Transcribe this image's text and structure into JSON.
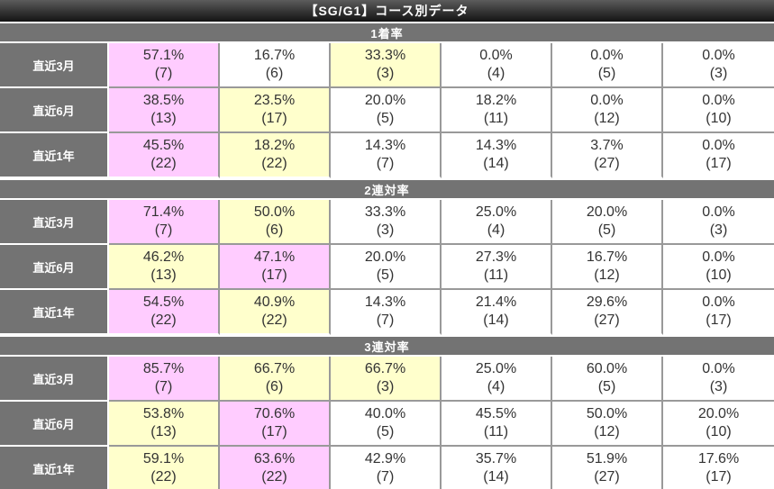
{
  "page_title": "【SG/G1】コース別データ",
  "colors": {
    "highlight_pink": "#FFCCFF",
    "highlight_yellow": "#FFFFCC",
    "header_gray": "#737373",
    "border_gray": "#999999",
    "title_bar_dark": "#141414"
  },
  "sections": [
    {
      "header": "1着率",
      "rows": [
        {
          "label": "直近3月",
          "cells": [
            {
              "pct": "57.1%",
              "count": "(7)",
              "hl": "pink"
            },
            {
              "pct": "16.7%",
              "count": "(6)",
              "hl": "plain"
            },
            {
              "pct": "33.3%",
              "count": "(3)",
              "hl": "yellow"
            },
            {
              "pct": "0.0%",
              "count": "(4)",
              "hl": "plain"
            },
            {
              "pct": "0.0%",
              "count": "(5)",
              "hl": "plain"
            },
            {
              "pct": "0.0%",
              "count": "(3)",
              "hl": "plain"
            }
          ]
        },
        {
          "label": "直近6月",
          "cells": [
            {
              "pct": "38.5%",
              "count": "(13)",
              "hl": "pink"
            },
            {
              "pct": "23.5%",
              "count": "(17)",
              "hl": "yellow"
            },
            {
              "pct": "20.0%",
              "count": "(5)",
              "hl": "plain"
            },
            {
              "pct": "18.2%",
              "count": "(11)",
              "hl": "plain"
            },
            {
              "pct": "0.0%",
              "count": "(12)",
              "hl": "plain"
            },
            {
              "pct": "0.0%",
              "count": "(10)",
              "hl": "plain"
            }
          ]
        },
        {
          "label": "直近1年",
          "cells": [
            {
              "pct": "45.5%",
              "count": "(22)",
              "hl": "pink"
            },
            {
              "pct": "18.2%",
              "count": "(22)",
              "hl": "yellow"
            },
            {
              "pct": "14.3%",
              "count": "(7)",
              "hl": "plain"
            },
            {
              "pct": "14.3%",
              "count": "(14)",
              "hl": "plain"
            },
            {
              "pct": "3.7%",
              "count": "(27)",
              "hl": "plain"
            },
            {
              "pct": "0.0%",
              "count": "(17)",
              "hl": "plain"
            }
          ]
        }
      ]
    },
    {
      "header": "2連対率",
      "rows": [
        {
          "label": "直近3月",
          "cells": [
            {
              "pct": "71.4%",
              "count": "(7)",
              "hl": "pink"
            },
            {
              "pct": "50.0%",
              "count": "(6)",
              "hl": "yellow"
            },
            {
              "pct": "33.3%",
              "count": "(3)",
              "hl": "plain"
            },
            {
              "pct": "25.0%",
              "count": "(4)",
              "hl": "plain"
            },
            {
              "pct": "20.0%",
              "count": "(5)",
              "hl": "plain"
            },
            {
              "pct": "0.0%",
              "count": "(3)",
              "hl": "plain"
            }
          ]
        },
        {
          "label": "直近6月",
          "cells": [
            {
              "pct": "46.2%",
              "count": "(13)",
              "hl": "yellow"
            },
            {
              "pct": "47.1%",
              "count": "(17)",
              "hl": "pink"
            },
            {
              "pct": "20.0%",
              "count": "(5)",
              "hl": "plain"
            },
            {
              "pct": "27.3%",
              "count": "(11)",
              "hl": "plain"
            },
            {
              "pct": "16.7%",
              "count": "(12)",
              "hl": "plain"
            },
            {
              "pct": "0.0%",
              "count": "(10)",
              "hl": "plain"
            }
          ]
        },
        {
          "label": "直近1年",
          "cells": [
            {
              "pct": "54.5%",
              "count": "(22)",
              "hl": "pink"
            },
            {
              "pct": "40.9%",
              "count": "(22)",
              "hl": "yellow"
            },
            {
              "pct": "14.3%",
              "count": "(7)",
              "hl": "plain"
            },
            {
              "pct": "21.4%",
              "count": "(14)",
              "hl": "plain"
            },
            {
              "pct": "29.6%",
              "count": "(27)",
              "hl": "plain"
            },
            {
              "pct": "0.0%",
              "count": "(17)",
              "hl": "plain"
            }
          ]
        }
      ]
    },
    {
      "header": "3連対率",
      "rows": [
        {
          "label": "直近3月",
          "cells": [
            {
              "pct": "85.7%",
              "count": "(7)",
              "hl": "pink"
            },
            {
              "pct": "66.7%",
              "count": "(6)",
              "hl": "yellow"
            },
            {
              "pct": "66.7%",
              "count": "(3)",
              "hl": "yellow"
            },
            {
              "pct": "25.0%",
              "count": "(4)",
              "hl": "plain"
            },
            {
              "pct": "60.0%",
              "count": "(5)",
              "hl": "plain"
            },
            {
              "pct": "0.0%",
              "count": "(3)",
              "hl": "plain"
            }
          ]
        },
        {
          "label": "直近6月",
          "cells": [
            {
              "pct": "53.8%",
              "count": "(13)",
              "hl": "yellow"
            },
            {
              "pct": "70.6%",
              "count": "(17)",
              "hl": "pink"
            },
            {
              "pct": "40.0%",
              "count": "(5)",
              "hl": "plain"
            },
            {
              "pct": "45.5%",
              "count": "(11)",
              "hl": "plain"
            },
            {
              "pct": "50.0%",
              "count": "(12)",
              "hl": "plain"
            },
            {
              "pct": "20.0%",
              "count": "(10)",
              "hl": "plain"
            }
          ]
        },
        {
          "label": "直近1年",
          "cells": [
            {
              "pct": "59.1%",
              "count": "(22)",
              "hl": "yellow"
            },
            {
              "pct": "63.6%",
              "count": "(22)",
              "hl": "pink"
            },
            {
              "pct": "42.9%",
              "count": "(7)",
              "hl": "plain"
            },
            {
              "pct": "35.7%",
              "count": "(14)",
              "hl": "plain"
            },
            {
              "pct": "51.9%",
              "count": "(27)",
              "hl": "plain"
            },
            {
              "pct": "17.6%",
              "count": "(17)",
              "hl": "plain"
            }
          ]
        }
      ]
    }
  ]
}
